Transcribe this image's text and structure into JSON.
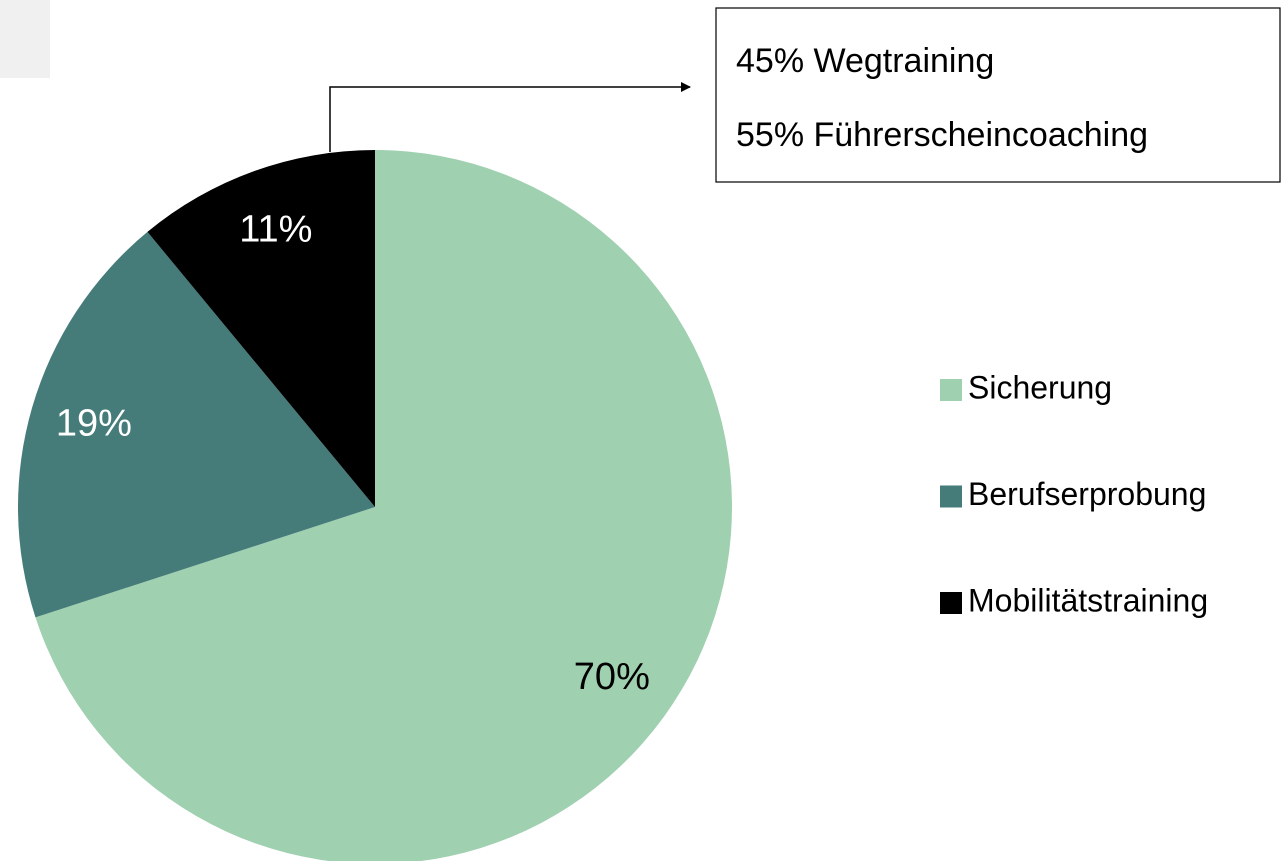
{
  "chart_data": {
    "type": "pie",
    "categories": [
      "Sicherung",
      "Berufserprobung",
      "Mobilitätstraining"
    ],
    "values": [
      70,
      19,
      11
    ],
    "value_labels": [
      "70%",
      "19%",
      "11%"
    ],
    "colors": [
      "#9fd0b0",
      "#457b79",
      "#000000"
    ],
    "annotations": [
      "45% Wegtraining",
      "55% Führerscheincoaching"
    ],
    "legend": "right"
  }
}
